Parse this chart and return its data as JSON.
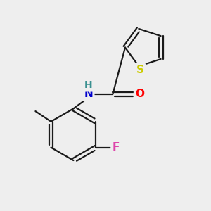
{
  "background_color": "#eeeeee",
  "bond_color": "#1a1a1a",
  "atom_colors": {
    "S": "#cccc00",
    "O": "#ff0000",
    "N": "#0000cd",
    "H": "#3a9090",
    "F": "#dd44aa",
    "C": "#1a1a1a"
  },
  "bond_width": 1.6,
  "font_size": 11,
  "figsize": [
    3.0,
    3.0
  ],
  "dpi": 100
}
